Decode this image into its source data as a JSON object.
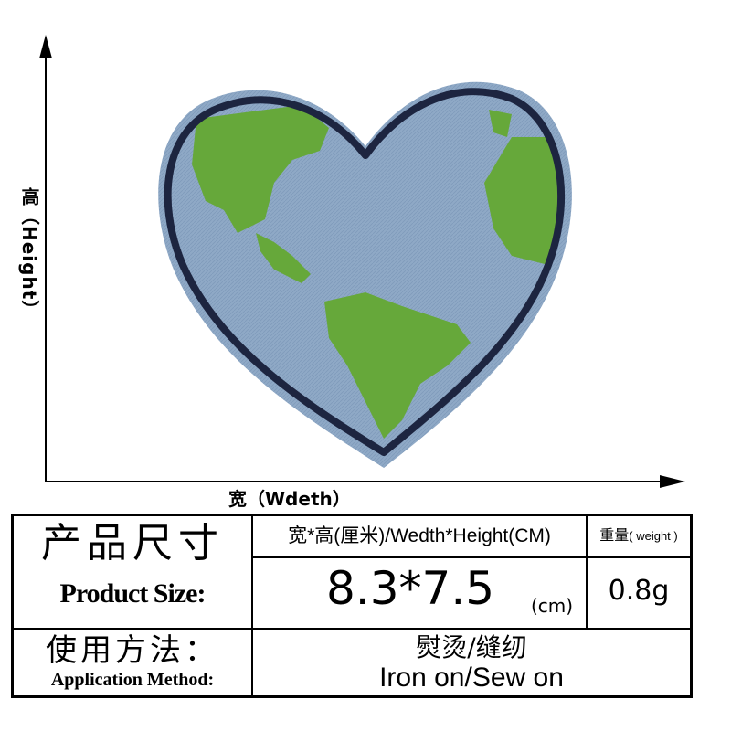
{
  "dimensions": {
    "height_label": "高（Height）",
    "width_label": "宽（Wdeth）"
  },
  "patch": {
    "ocean_color": "#8fa9c6",
    "land_color": "#66a83a",
    "border_color": "#1d2540"
  },
  "table": {
    "product_size_cn": "产品尺寸",
    "product_size_en": "Product Size:",
    "size_header": "宽*高(厘米)/Wedth*Height(CM)",
    "weight_header_cn": "重量",
    "weight_header_en": "( weight )",
    "size_value": "8.3*7.5",
    "size_unit": "(cm)",
    "weight_value": "0.8g",
    "method_label_cn": "使用方法：",
    "method_label_en": "Application Method:",
    "method_value_cn": "熨烫/缝纫",
    "method_value_en": "Iron on/Sew on"
  }
}
